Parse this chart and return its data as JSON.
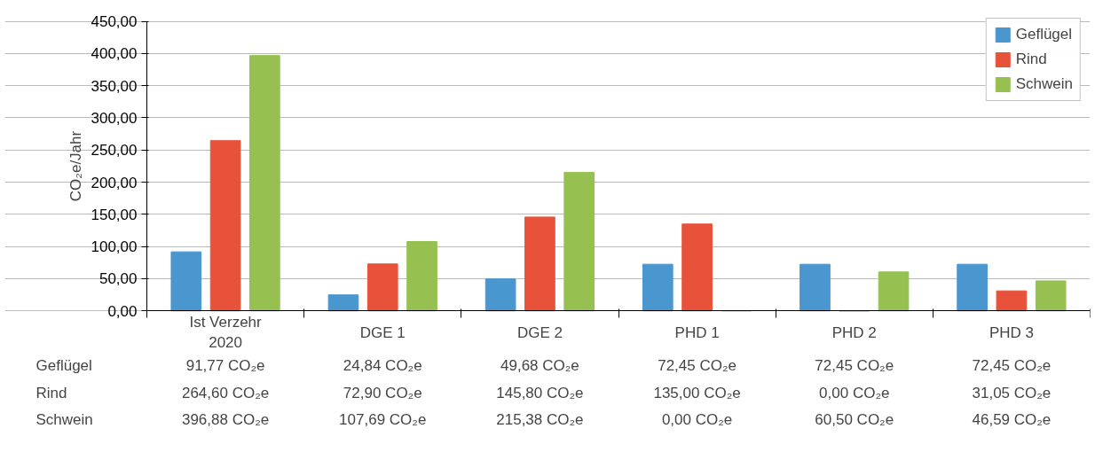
{
  "chart_data": {
    "type": "bar",
    "ylabel": "CO₂e/Jahr",
    "categories": [
      "Ist Verzehr\n2020",
      "DGE 1",
      "DGE 2",
      "PHD 1",
      "PHD 2",
      "PHD 3"
    ],
    "series": [
      {
        "name": "Geflügel",
        "color": "#4a96cf",
        "values": [
          91.77,
          24.84,
          49.68,
          72.45,
          72.45,
          72.45
        ],
        "value_labels": [
          "91,77 CO₂e",
          "24,84 CO₂e",
          "49,68 CO₂e",
          "72,45 CO₂e",
          "72,45 CO₂e",
          "72,45 CO₂e"
        ]
      },
      {
        "name": "Rind",
        "color": "#e8523a",
        "values": [
          264.6,
          72.9,
          145.8,
          135.0,
          0.0,
          31.05
        ],
        "value_labels": [
          "264,60 CO₂e",
          "72,90 CO₂e",
          "145,80 CO₂e",
          "135,00 CO₂e",
          "0,00 CO₂e",
          "31,05 CO₂e"
        ]
      },
      {
        "name": "Schwein",
        "color": "#96c150",
        "values": [
          396.88,
          107.69,
          215.38,
          0.0,
          60.5,
          46.59
        ],
        "value_labels": [
          "396,88 CO₂e",
          "107,69 CO₂e",
          "215,38 CO₂e",
          "0,00 CO₂e",
          "60,50 CO₂e",
          "46,59 CO₂e"
        ]
      }
    ],
    "ylim": [
      0,
      450
    ],
    "yticks": [
      {
        "value": 0,
        "label": "0,00"
      },
      {
        "value": 50,
        "label": "50,00"
      },
      {
        "value": 100,
        "label": "100,00"
      },
      {
        "value": 150,
        "label": "150,00"
      },
      {
        "value": 200,
        "label": "200,00"
      },
      {
        "value": 250,
        "label": "250,00"
      },
      {
        "value": 300,
        "label": "300,00"
      },
      {
        "value": 350,
        "label": "350,00"
      },
      {
        "value": 400,
        "label": "400,00"
      },
      {
        "value": 450,
        "label": "450,00"
      }
    ],
    "grid": "y",
    "legend": "top right"
  }
}
